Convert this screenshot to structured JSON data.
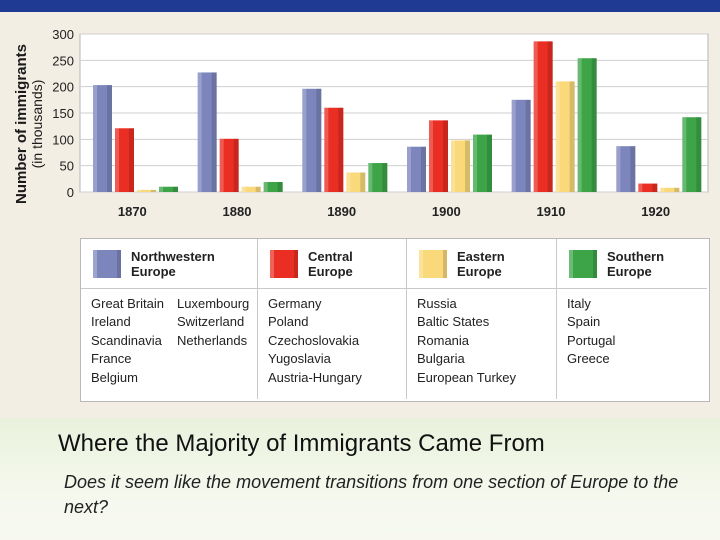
{
  "colors": {
    "top_band": "#1f3a93",
    "chart_background": "#f3eee3",
    "Northwestern Europe": "#7c86bd",
    "Central Europe": "#ea2e23",
    "Eastern Europe": "#f9d97a",
    "Southern Europe": "#3da548"
  },
  "chart_data": {
    "type": "bar",
    "ylabel": "Number of immigrants",
    "ylabel_sub": "(in thousands)",
    "xlabel": "",
    "ylim": [
      0,
      300
    ],
    "yticks": [
      0,
      50,
      100,
      150,
      200,
      250,
      300
    ],
    "grid": true,
    "legend_placement": "below",
    "categories": [
      "1870",
      "1880",
      "1890",
      "1900",
      "1910",
      "1920"
    ],
    "series": [
      {
        "name": "Northwestern Europe",
        "values": [
          203,
          227,
          196,
          86,
          175,
          87
        ]
      },
      {
        "name": "Central Europe",
        "values": [
          121,
          101,
          160,
          136,
          286,
          16
        ]
      },
      {
        "name": "Eastern Europe",
        "values": [
          4,
          10,
          37,
          98,
          210,
          8
        ]
      },
      {
        "name": "Southern Europe",
        "values": [
          10,
          19,
          55,
          109,
          254,
          142
        ]
      }
    ]
  },
  "legend": [
    {
      "title_line1": "Northwestern",
      "title_line2": "Europe",
      "countries_col1": [
        "Great Britain",
        "Ireland",
        "Scandinavia",
        "France",
        "Belgium"
      ],
      "countries_col2": [
        "Luxembourg",
        "Switzerland",
        "Netherlands"
      ]
    },
    {
      "title_line1": "Central",
      "title_line2": "Europe",
      "countries_col1": [
        "Germany",
        "Poland",
        "Czechoslovakia",
        "Yugoslavia",
        "Austria-Hungary"
      ]
    },
    {
      "title_line1": "Eastern",
      "title_line2": "Europe",
      "countries_col1": [
        "Russia",
        "Baltic States",
        "Romania",
        "Bulgaria",
        "European Turkey"
      ]
    },
    {
      "title_line1": "Southern",
      "title_line2": "Europe",
      "countries_col1": [
        "Italy",
        "Spain",
        "Portugal",
        "Greece"
      ]
    }
  ],
  "caption": {
    "title": "Where the Majority of Immigrants Came From",
    "question": "Does it seem like the movement transitions from one section of Europe to the next?"
  }
}
